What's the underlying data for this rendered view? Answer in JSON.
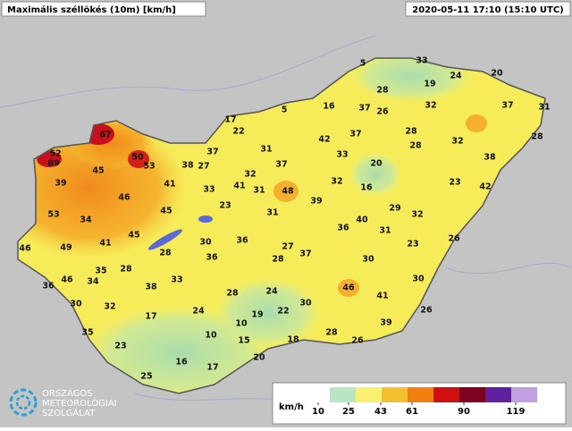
{
  "header": {
    "title": "Maximális széllökés (10m) [km/h]",
    "timestamp": "2020-05-11 17:10 (15:10 UTC)"
  },
  "stations": [
    67,
    52,
    89,
    50,
    53,
    45,
    39,
    38,
    27,
    37,
    17,
    22,
    5,
    5,
    33,
    24,
    20,
    19,
    28,
    16,
    37,
    26,
    32,
    37,
    31,
    42,
    37,
    28,
    32,
    28,
    31,
    33,
    28,
    38,
    37,
    32,
    20,
    16,
    41,
    33,
    41,
    31,
    48,
    39,
    32,
    23,
    42,
    46,
    53,
    34,
    45,
    23,
    31,
    29,
    32,
    40,
    31,
    36,
    26,
    45,
    41,
    49,
    46,
    30,
    36,
    27,
    23,
    28,
    36,
    28,
    37,
    30,
    35,
    28,
    34,
    46,
    36,
    33,
    38,
    30,
    28,
    24,
    46,
    41,
    30,
    32,
    24,
    19,
    22,
    30,
    17,
    26,
    39,
    35,
    10,
    10,
    15,
    18,
    28,
    26,
    23,
    16,
    17,
    20,
    25
  ],
  "legend": {
    "unit": "km/h",
    "ticks": [
      10,
      25,
      43,
      61,
      90,
      119
    ]
  },
  "logo": {
    "line1": "ORSZÁGOS",
    "line2": "METEOROLÓGIAI",
    "line3": "SZOLGÁLAT"
  }
}
